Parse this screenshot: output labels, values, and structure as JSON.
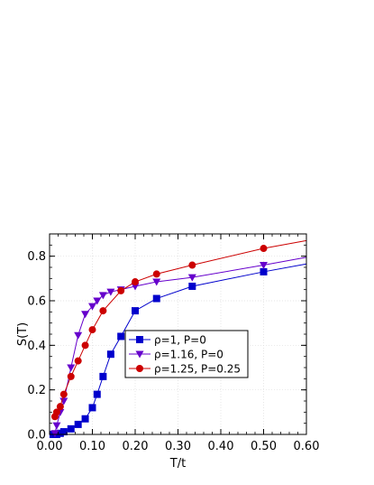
{
  "chart_data": {
    "type": "line",
    "title": "",
    "xlabel": "T/t",
    "ylabel": "S(T)",
    "xlim": [
      0,
      0.6
    ],
    "ylim": [
      0,
      0.9
    ],
    "xticks": [
      0.0,
      0.1,
      0.2,
      0.3,
      0.4,
      0.5,
      0.6
    ],
    "xtick_labels": [
      "0.00",
      "0.10",
      "0.20",
      "0.30",
      "0.40",
      "0.50",
      "0.60"
    ],
    "yticks": [
      0.0,
      0.2,
      0.4,
      0.6,
      0.8
    ],
    "ytick_labels": [
      "0.0",
      "0.2",
      "0.4",
      "0.6",
      "0.8"
    ],
    "grid": true,
    "legend_position": "center-right",
    "series": [
      {
        "name": "ρ=1, P=0",
        "color": "#0000cc",
        "marker": "square",
        "x": [
          0.0083,
          0.0125,
          0.0167,
          0.025,
          0.0333,
          0.05,
          0.0667,
          0.0833,
          0.1,
          0.1111,
          0.125,
          0.1429,
          0.1667,
          0.2,
          0.25,
          0.3333,
          0.5,
          0.6
        ],
        "y": [
          0.0,
          0.0,
          0.0,
          0.005,
          0.012,
          0.025,
          0.045,
          0.07,
          0.12,
          0.18,
          0.26,
          0.36,
          0.44,
          0.555,
          0.61,
          0.665,
          0.73,
          0.765
        ]
      },
      {
        "name": "ρ=1.16, P=0",
        "color": "#6600cc",
        "marker": "triangle-down",
        "x": [
          0.0125,
          0.0167,
          0.025,
          0.0333,
          0.05,
          0.0667,
          0.0833,
          0.1,
          0.1111,
          0.125,
          0.1429,
          0.1667,
          0.2,
          0.25,
          0.3333,
          0.5,
          0.6
        ],
        "y": [
          0.005,
          0.04,
          0.1,
          0.15,
          0.3,
          0.445,
          0.54,
          0.575,
          0.6,
          0.625,
          0.64,
          0.65,
          0.665,
          0.685,
          0.705,
          0.76,
          0.795
        ]
      },
      {
        "name": "ρ=1.25, P=0.25",
        "color": "#cc0000",
        "marker": "circle",
        "x": [
          0.0125,
          0.0167,
          0.025,
          0.0333,
          0.05,
          0.0667,
          0.0833,
          0.1,
          0.125,
          0.1667,
          0.2,
          0.25,
          0.3333,
          0.5,
          0.6
        ],
        "y": [
          0.08,
          0.1,
          0.125,
          0.18,
          0.26,
          0.33,
          0.4,
          0.47,
          0.555,
          0.645,
          0.685,
          0.72,
          0.76,
          0.835,
          0.87
        ]
      }
    ]
  }
}
